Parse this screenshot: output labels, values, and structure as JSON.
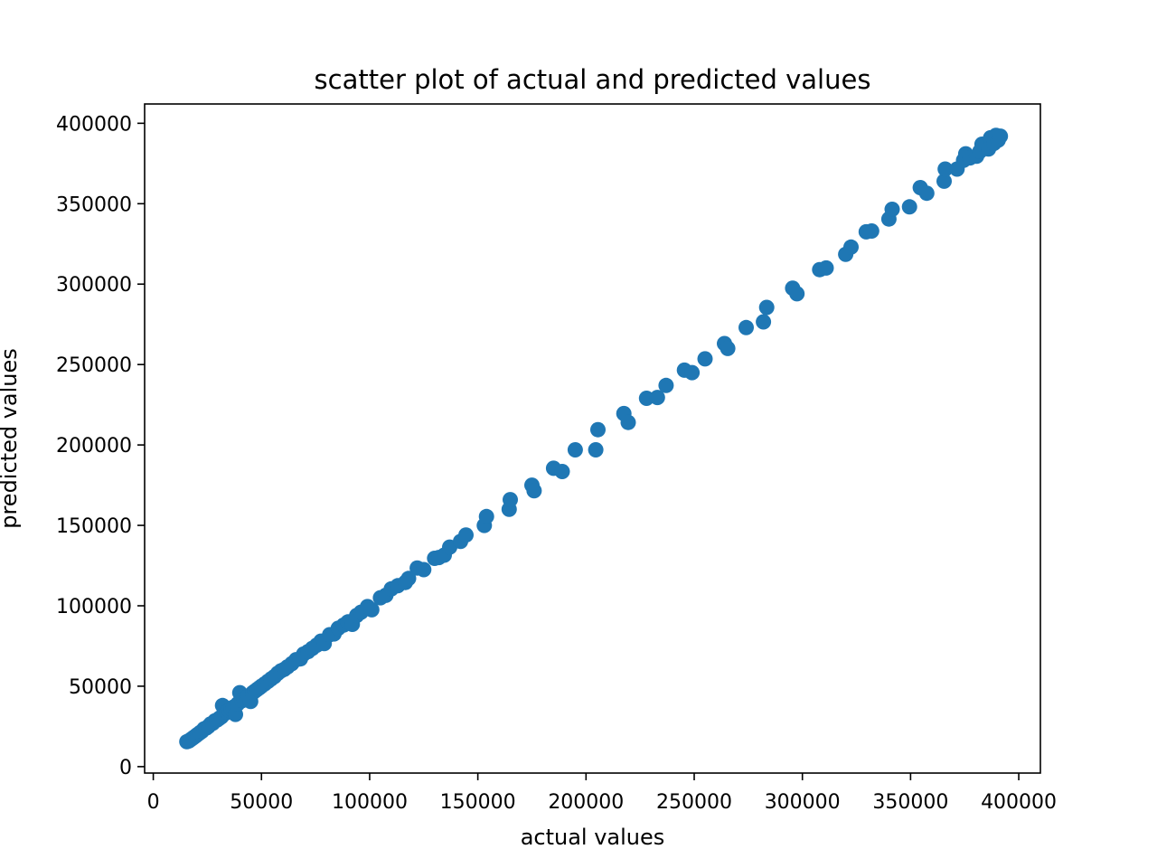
{
  "chart_data": {
    "type": "scatter",
    "title": "scatter plot of actual and predicted values",
    "xlabel": "actual values",
    "ylabel": "predicted values",
    "xlim": [
      -4000,
      410000
    ],
    "ylim": [
      -4000,
      412000
    ],
    "xticks": [
      0,
      50000,
      100000,
      150000,
      200000,
      250000,
      300000,
      350000,
      400000
    ],
    "yticks": [
      0,
      50000,
      100000,
      150000,
      200000,
      250000,
      300000,
      350000,
      400000
    ],
    "grid": false,
    "marker_color": "#1f77b4",
    "series": [
      {
        "points": [
          [
            15500,
            15500
          ],
          [
            16500,
            16000
          ],
          [
            17500,
            17000
          ],
          [
            18500,
            18000
          ],
          [
            19500,
            19000
          ],
          [
            20500,
            20000
          ],
          [
            21500,
            21000
          ],
          [
            22500,
            22000
          ],
          [
            23500,
            23500
          ],
          [
            24500,
            24000
          ],
          [
            25500,
            25000
          ],
          [
            26500,
            26500
          ],
          [
            27500,
            27000
          ],
          [
            28500,
            28500
          ],
          [
            29500,
            29000
          ],
          [
            30500,
            30000
          ],
          [
            31500,
            31000
          ],
          [
            32000,
            38000
          ],
          [
            33000,
            33000
          ],
          [
            34000,
            34000
          ],
          [
            35000,
            35000
          ],
          [
            36000,
            36000
          ],
          [
            37000,
            37000
          ],
          [
            38000,
            32500
          ],
          [
            39000,
            39000
          ],
          [
            40000,
            46000
          ],
          [
            41000,
            41000
          ],
          [
            42000,
            42000
          ],
          [
            43000,
            43000
          ],
          [
            44000,
            44000
          ],
          [
            45000,
            40500
          ],
          [
            46000,
            46000
          ],
          [
            47000,
            47000
          ],
          [
            48000,
            48000
          ],
          [
            49000,
            49000
          ],
          [
            50000,
            50000
          ],
          [
            51500,
            51500
          ],
          [
            53000,
            53000
          ],
          [
            54500,
            54500
          ],
          [
            56000,
            56000
          ],
          [
            57500,
            58000
          ],
          [
            59000,
            59500
          ],
          [
            60500,
            60500
          ],
          [
            62000,
            62000
          ],
          [
            64000,
            64000
          ],
          [
            66000,
            66500
          ],
          [
            68000,
            67000
          ],
          [
            69500,
            70000
          ],
          [
            71500,
            71500
          ],
          [
            73500,
            73500
          ],
          [
            75500,
            75500
          ],
          [
            77500,
            78000
          ],
          [
            79000,
            76500
          ],
          [
            81500,
            82000
          ],
          [
            83500,
            82500
          ],
          [
            85500,
            86000
          ],
          [
            88000,
            88000
          ],
          [
            90000,
            90000
          ],
          [
            92000,
            88500
          ],
          [
            94000,
            94000
          ],
          [
            96000,
            96000
          ],
          [
            99000,
            99500
          ],
          [
            101000,
            97500
          ],
          [
            105000,
            105000
          ],
          [
            107500,
            106500
          ],
          [
            110000,
            110500
          ],
          [
            113000,
            112500
          ],
          [
            116500,
            114500
          ],
          [
            118000,
            117000
          ],
          [
            122000,
            123500
          ],
          [
            125000,
            122500
          ],
          [
            130000,
            129500
          ],
          [
            132000,
            130000
          ],
          [
            134500,
            131500
          ],
          [
            137000,
            136500
          ],
          [
            142000,
            140000
          ],
          [
            144500,
            144000
          ],
          [
            153000,
            150000
          ],
          [
            154000,
            155500
          ],
          [
            164500,
            160000
          ],
          [
            165000,
            166000
          ],
          [
            175000,
            175000
          ],
          [
            176000,
            171500
          ],
          [
            185000,
            185500
          ],
          [
            189000,
            183500
          ],
          [
            195000,
            197000
          ],
          [
            204500,
            197000
          ],
          [
            205500,
            209500
          ],
          [
            217500,
            219500
          ],
          [
            219500,
            214000
          ],
          [
            228000,
            229000
          ],
          [
            233000,
            229500
          ],
          [
            237000,
            237000
          ],
          [
            245500,
            246500
          ],
          [
            249000,
            245000
          ],
          [
            255000,
            253500
          ],
          [
            264000,
            263000
          ],
          [
            265500,
            260000
          ],
          [
            274000,
            273000
          ],
          [
            282000,
            276500
          ],
          [
            283500,
            285500
          ],
          [
            295500,
            297500
          ],
          [
            297500,
            294000
          ],
          [
            308000,
            309000
          ],
          [
            311000,
            310000
          ],
          [
            320000,
            318500
          ],
          [
            322500,
            323000
          ],
          [
            329500,
            332500
          ],
          [
            332000,
            333000
          ],
          [
            340000,
            340500
          ],
          [
            341500,
            346500
          ],
          [
            349500,
            348000
          ],
          [
            354500,
            360000
          ],
          [
            357500,
            356500
          ],
          [
            365500,
            364000
          ],
          [
            366000,
            371500
          ],
          [
            371500,
            371500
          ],
          [
            374500,
            377000
          ],
          [
            375500,
            381000
          ],
          [
            377500,
            378500
          ],
          [
            380500,
            379500
          ],
          [
            382000,
            382500
          ],
          [
            383000,
            387000
          ],
          [
            386000,
            384000
          ],
          [
            387000,
            391000
          ],
          [
            388500,
            387500
          ],
          [
            389500,
            392500
          ],
          [
            390500,
            389500
          ],
          [
            391500,
            392000
          ]
        ]
      }
    ]
  }
}
